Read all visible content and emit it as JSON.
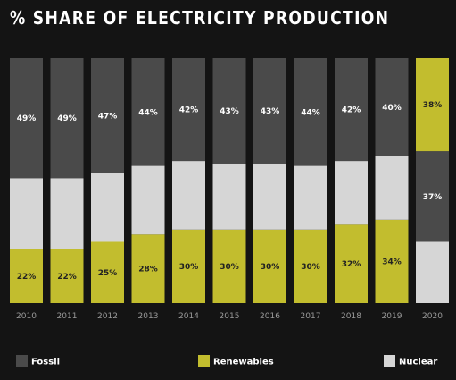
{
  "title": "% SHARE OF ELECTRICITY PRODUCTION",
  "colors": {
    "background": "#141414",
    "fossil": "#4a4a4a",
    "renewables": "#c2bd2e",
    "nuclear": "#d6d6d6",
    "label_light": "#ffffff",
    "label_dark": "#222222"
  },
  "chart_data": {
    "type": "bar",
    "stacked": true,
    "categories": [
      "2010",
      "2011",
      "2012",
      "2013",
      "2014",
      "2015",
      "2016",
      "2017",
      "2018",
      "2019",
      "2020"
    ],
    "series": [
      {
        "name": "Fossil",
        "key": "fossil",
        "values": [
          49,
          49,
          47,
          44,
          42,
          43,
          43,
          44,
          42,
          40,
          37
        ],
        "labels": [
          "49%",
          "49%",
          "47%",
          "44%",
          "42%",
          "43%",
          "43%",
          "44%",
          "42%",
          "40%",
          "37%"
        ]
      },
      {
        "name": "Renewables",
        "key": "renewables",
        "values": [
          22,
          22,
          25,
          28,
          30,
          30,
          30,
          30,
          32,
          34,
          38
        ],
        "labels": [
          "22%",
          "22%",
          "25%",
          "28%",
          "30%",
          "30%",
          "30%",
          "30%",
          "32%",
          "34%",
          "38%"
        ]
      },
      {
        "name": "Nuclear",
        "key": "nuclear",
        "values": [
          29,
          29,
          28,
          28,
          28,
          27,
          27,
          26,
          26,
          26,
          25
        ]
      }
    ],
    "ylim": [
      0,
      100
    ],
    "legend": "bottom"
  }
}
